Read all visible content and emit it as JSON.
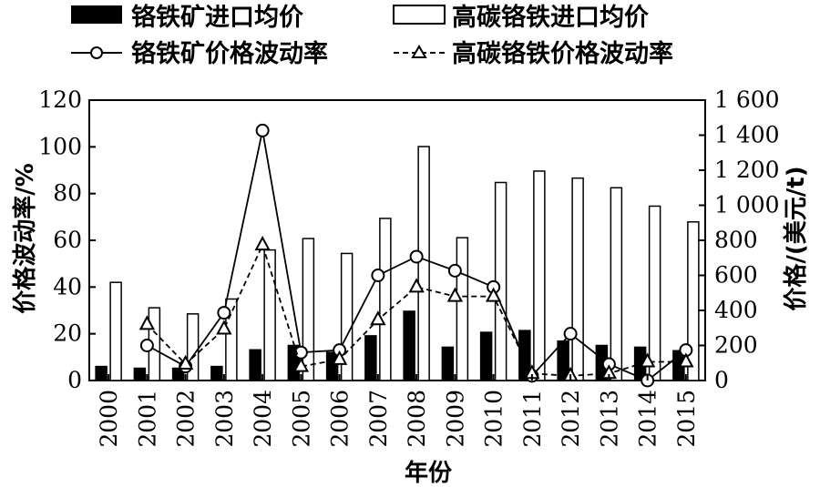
{
  "chart_data": {
    "type": "bar+line",
    "categories": [
      "2000",
      "2001",
      "2002",
      "2003",
      "2004",
      "2005",
      "2006",
      "2007",
      "2008",
      "2009",
      "2010",
      "2011",
      "2012",
      "2013",
      "2014",
      "2015"
    ],
    "bar_series": [
      {
        "name": "铬铁矿进口均价",
        "fill": "#000000",
        "values": [
          80,
          70,
          70,
          80,
          175,
          200,
          160,
          255,
          395,
          190,
          275,
          285,
          225,
          200,
          190,
          170
        ]
      },
      {
        "name": "高碳铬铁进口均价",
        "fill": "#ffffff",
        "values": [
          560,
          415,
          380,
          465,
          745,
          810,
          725,
          925,
          1335,
          815,
          1130,
          1195,
          1155,
          1100,
          995,
          905
        ]
      }
    ],
    "line_series": [
      {
        "name": "铬铁矿价格波动率",
        "marker": "circle",
        "dash": "solid",
        "values": [
          null,
          15,
          6,
          29,
          107,
          12,
          13,
          45,
          53,
          47,
          40,
          2,
          20,
          7,
          0,
          13
        ]
      },
      {
        "name": "高碳铬铁价格波动率",
        "marker": "triangle",
        "dash": "dashed",
        "values": [
          null,
          24,
          7,
          22,
          58,
          6,
          9,
          26,
          40,
          36,
          36,
          3,
          2,
          3,
          8,
          8
        ]
      }
    ],
    "y_left": {
      "label": "价格波动率/%",
      "min": 0,
      "max": 120,
      "ticks": [
        "0",
        "20",
        "40",
        "60",
        "80",
        "100",
        "120"
      ]
    },
    "y_right": {
      "label": "价格/(美元/t)",
      "min": 0,
      "max": 1600,
      "ticks": [
        "0",
        "200",
        "400",
        "600",
        "800",
        "1 000",
        "1 200",
        "1 400",
        "1 600"
      ]
    },
    "xlabel": "年份",
    "legend": {
      "position": "top"
    }
  }
}
